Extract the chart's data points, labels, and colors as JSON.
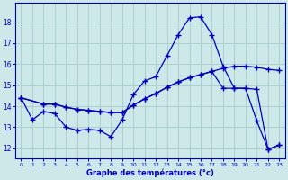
{
  "xlabel": "Graphe des températures (°c)",
  "bg_color": "#cce8e8",
  "line_color": "#0000bb",
  "grid_color": "#aad0d0",
  "ylim": [
    11.5,
    18.9
  ],
  "xlim": [
    -0.5,
    23.5
  ],
  "yticks": [
    12,
    13,
    14,
    15,
    16,
    17,
    18
  ],
  "xticks": [
    0,
    1,
    2,
    3,
    4,
    5,
    6,
    7,
    8,
    9,
    10,
    11,
    12,
    13,
    14,
    15,
    16,
    17,
    18,
    19,
    20,
    21,
    22,
    23
  ],
  "curve_peak_x": [
    0,
    1,
    2,
    3,
    4,
    5,
    6,
    7,
    8,
    9,
    10,
    11,
    12,
    13,
    14,
    15,
    16,
    17,
    18,
    19,
    20,
    21,
    22,
    23
  ],
  "curve_peak_y": [
    14.4,
    13.35,
    13.75,
    13.65,
    13.0,
    12.85,
    12.9,
    12.85,
    12.55,
    13.35,
    14.55,
    15.2,
    15.4,
    16.4,
    17.4,
    18.2,
    18.25,
    17.4,
    15.9,
    14.85,
    14.85,
    13.3,
    11.95,
    12.15
  ],
  "curve_grad_x": [
    0,
    2,
    3,
    4,
    5,
    6,
    7,
    8,
    9,
    10,
    11,
    12,
    13,
    14,
    15,
    16,
    17,
    18,
    19,
    20,
    21,
    22,
    23
  ],
  "curve_grad_y": [
    14.4,
    14.1,
    14.1,
    13.95,
    13.85,
    13.8,
    13.75,
    13.7,
    13.7,
    14.05,
    14.35,
    14.6,
    14.9,
    15.15,
    15.35,
    15.5,
    15.65,
    15.8,
    15.9,
    15.9,
    15.85,
    15.75,
    15.7
  ],
  "curve_flat_x": [
    0,
    2,
    3,
    4,
    5,
    6,
    7,
    8,
    9,
    10,
    11,
    12,
    13,
    14,
    15,
    16,
    17,
    18,
    19,
    20,
    21,
    22,
    23
  ],
  "curve_flat_y": [
    14.4,
    14.1,
    14.1,
    13.95,
    13.85,
    13.8,
    13.75,
    13.7,
    13.7,
    14.05,
    14.35,
    14.6,
    14.9,
    15.15,
    15.35,
    15.5,
    15.65,
    14.85,
    14.85,
    14.85,
    14.8,
    11.95,
    12.15
  ]
}
